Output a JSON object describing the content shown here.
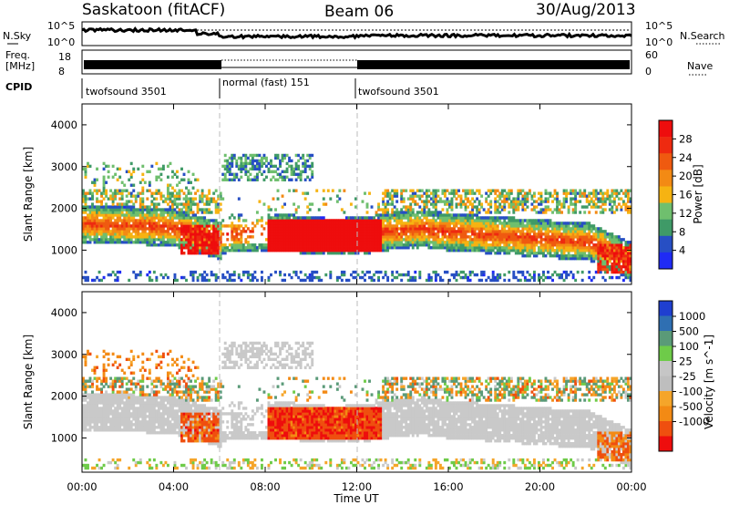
{
  "header": {
    "station": "Saskatoon (fitACF)",
    "beam": "Beam 06",
    "date": "30/Aug/2013"
  },
  "top_panels": {
    "nsky_label": "N.Sky",
    "nsky_ticks": [
      "10^5",
      "10^0"
    ],
    "nsearch_label": "N.Search",
    "nsearch_ticks": [
      "10^5",
      "10^0"
    ],
    "freq_label": "Freq.",
    "freq_unit": "[MHz]",
    "freq_ticks": [
      "18",
      "8"
    ],
    "nave_label": "Nave",
    "nave_ticks": [
      "60",
      "0"
    ],
    "cpid_label": "CPID",
    "cpid_segments": [
      {
        "label": "twofsound 3501",
        "start_hour": 0,
        "end_hour": 6
      },
      {
        "label": "normal (fast) 151",
        "start_hour": 6,
        "end_hour": 12
      },
      {
        "label": "twofsound 3501",
        "start_hour": 12,
        "end_hour": 24
      }
    ]
  },
  "colors": {
    "power_scale": [
      "#1f2bf5",
      "#274fc4",
      "#3f9a67",
      "#6fbf6e",
      "#f6b312",
      "#f38a14",
      "#ef5a10",
      "#ee2a10",
      "#ee0d0d"
    ],
    "velocity_scale": [
      "#ee0d0d",
      "#ef4f0f",
      "#f38a14",
      "#f5a52a",
      "#bebebe",
      "#c6c6c6",
      "#6ecb49",
      "#5a9a78",
      "#2f6fb2",
      "#1f3fd0"
    ]
  },
  "chart_data": [
    {
      "type": "heatmap",
      "title": "",
      "xlabel": "",
      "ylabel": "Slant Range [km]",
      "xlim": [
        0,
        24
      ],
      "ylim": [
        180,
        4500
      ],
      "y_ticks": [
        "1000",
        "2000",
        "3000",
        "4000"
      ],
      "colorbar_label": "Power [dB]",
      "colorbar_ticks": [
        "4",
        "8",
        "12",
        "16",
        "20",
        "24",
        "28"
      ],
      "colorbar_range": [
        0,
        32
      ],
      "features": [
        {
          "name": "main echo band",
          "x": [
            0,
            24
          ],
          "y": [
            1000,
            2300
          ],
          "typical": 18
        },
        {
          "name": "intense scatter",
          "x": [
            8,
            13
          ],
          "y": [
            900,
            1700
          ],
          "typical": 30
        },
        {
          "name": "intense scatter",
          "x": [
            4,
            6
          ],
          "y": [
            800,
            1600
          ],
          "typical": 28
        },
        {
          "name": "far range patch",
          "x": [
            6,
            10
          ],
          "y": [
            2600,
            3300
          ],
          "typical": 8
        }
      ]
    },
    {
      "type": "heatmap",
      "title": "",
      "xlabel": "Time UT",
      "ylabel": "Slant Range [km]",
      "xlim": [
        0,
        24
      ],
      "ylim": [
        180,
        4500
      ],
      "x_ticks": [
        "00:00",
        "04:00",
        "08:00",
        "12:00",
        "16:00",
        "20:00",
        "00:00"
      ],
      "y_ticks": [
        "1000",
        "2000",
        "3000",
        "4000"
      ],
      "colorbar_label": "Velocity [m s^-1]",
      "colorbar_ticks": [
        "1000",
        "500",
        "100",
        "25",
        "-25",
        "-100",
        "-500",
        "-1000"
      ],
      "features": [
        {
          "name": "ground scatter",
          "x": [
            0,
            24
          ],
          "y": [
            1000,
            2300
          ],
          "typical": 0
        },
        {
          "name": "ionospheric flow",
          "x": [
            8,
            13
          ],
          "y": [
            900,
            1700
          ],
          "typical": -400
        },
        {
          "name": "ionospheric flow",
          "x": [
            0,
            6
          ],
          "y": [
            2000,
            2800
          ],
          "typical": -200
        }
      ]
    }
  ]
}
